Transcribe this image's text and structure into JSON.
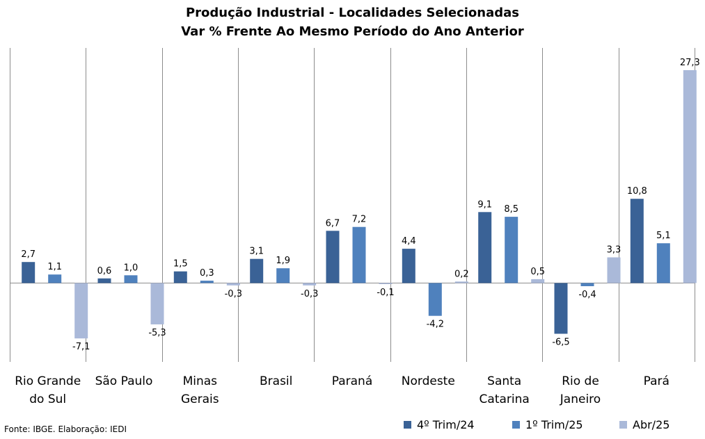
{
  "chart_data": {
    "type": "bar",
    "title": "Produção Industrial - Localidades Selecionadas",
    "subtitle": "Var % Frente Ao Mesmo Período do Ano Anterior",
    "categories": [
      [
        "Rio Grande",
        "do Sul"
      ],
      [
        "São Paulo"
      ],
      [
        "Minas",
        "Gerais"
      ],
      [
        "Brasil"
      ],
      [
        "Paraná"
      ],
      [
        "Nordeste"
      ],
      [
        "Santa",
        "Catarina"
      ],
      [
        "Rio de",
        "Janeiro"
      ],
      [
        "Pará"
      ]
    ],
    "series": [
      {
        "name": "4º Trim/24",
        "color": "#3a6296",
        "values": [
          2.7,
          0.6,
          1.5,
          3.1,
          6.7,
          4.4,
          9.1,
          -6.5,
          10.8
        ],
        "labels": [
          "2,7",
          "0,6",
          "1,5",
          "3,1",
          "6,7",
          "4,4",
          "9,1",
          "-6,5",
          "10,8"
        ]
      },
      {
        "name": "1º Trim/25",
        "color": "#4f81bd",
        "values": [
          1.1,
          1.0,
          0.3,
          1.9,
          7.2,
          -4.2,
          8.5,
          -0.4,
          5.1
        ],
        "labels": [
          "1,1",
          "1,0",
          "0,3",
          "1,9",
          "7,2",
          "-4,2",
          "8,5",
          "-0,4",
          "5,1"
        ]
      },
      {
        "name": "Abr/25",
        "color": "#aab9d9",
        "values": [
          -7.1,
          -5.3,
          -0.3,
          -0.3,
          -0.1,
          0.2,
          0.5,
          3.3,
          27.3
        ],
        "labels": [
          "-7,1",
          "-5,3",
          "-0,3",
          "-0,3",
          "-0,1",
          "0,2",
          "0,5",
          "3,3",
          "27,3"
        ]
      }
    ],
    "ylim": [
      -10,
      32
    ],
    "grid": false,
    "legend_position": "bottom-right"
  },
  "footer": {
    "source": "Fonte: IBGE. Elaboração: IEDI"
  }
}
